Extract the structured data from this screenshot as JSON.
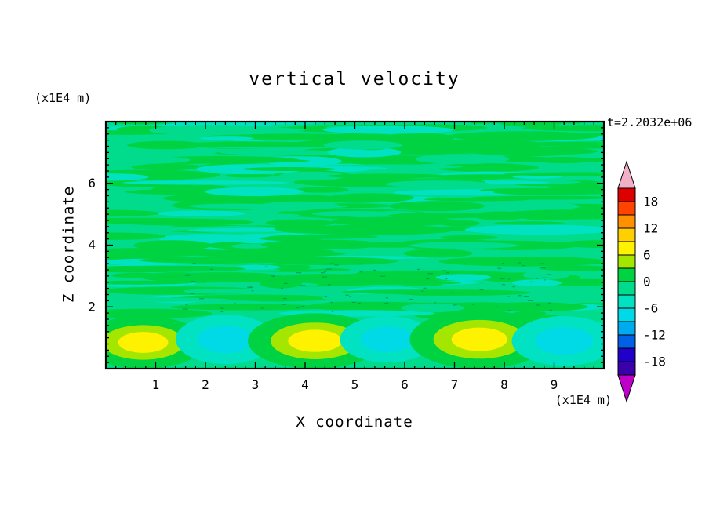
{
  "chart_data": {
    "type": "heatmap",
    "title": "vertical velocity",
    "time_label": "t=2.2032e+06",
    "xlabel": "X coordinate",
    "ylabel": "Z coordinate",
    "x_units": "(x1E4 m)",
    "y_units": "(x1E4 m)",
    "xlim": [
      0,
      10
    ],
    "ylim": [
      0,
      8
    ],
    "x_ticks": [
      1,
      2,
      3,
      4,
      5,
      6,
      7,
      8,
      9
    ],
    "y_ticks": [
      2,
      4,
      6
    ],
    "minor_tick_step": 0.2,
    "grid": false,
    "legend_position": "right-colorbar",
    "field": {
      "background_color": "#00DC8C",
      "streak_color": "#00D341",
      "streak_color2": "#00E2C2",
      "contour_dash_color": "#00A050",
      "streak_zone": [
        1.8,
        7.95
      ],
      "streak_count": 300,
      "dash_count": 90,
      "seed": 77
    },
    "palettes": {
      "pos": [
        {
          "color": "#00D341",
          "scale": 1.0
        },
        {
          "color": "#A5E600",
          "scale": 0.66
        },
        {
          "color": "#FFF200",
          "scale": 0.4
        }
      ],
      "neg": [
        {
          "color": "#00E2C2",
          "scale": 1.0
        },
        {
          "color": "#00DAE6",
          "scale": 0.56
        }
      ]
    },
    "cells": [
      {
        "x": 0.75,
        "z": 0.85,
        "rx": 1.25,
        "rz": 0.85,
        "type": "pos",
        "peak": "positive updraft ~7"
      },
      {
        "x": 2.4,
        "z": 0.95,
        "rx": 1.0,
        "rz": 0.8,
        "type": "neg",
        "peak": "negative downdraft ~-7"
      },
      {
        "x": 4.2,
        "z": 0.9,
        "rx": 1.35,
        "rz": 0.9,
        "type": "pos",
        "peak": "positive updraft ~7"
      },
      {
        "x": 5.65,
        "z": 0.95,
        "rx": 0.95,
        "rz": 0.75,
        "type": "neg",
        "peak": "negative downdraft ~-7"
      },
      {
        "x": 7.5,
        "z": 0.95,
        "rx": 1.4,
        "rz": 0.95,
        "type": "pos",
        "peak": "positive updraft ~8"
      },
      {
        "x": 9.2,
        "z": 0.9,
        "rx": 1.05,
        "rz": 0.8,
        "type": "neg",
        "peak": "negative downdraft ~-7"
      }
    ],
    "colorbar": {
      "value_min": -21,
      "value_max": 21,
      "step": 3,
      "colors_top_to_bottom": [
        "#DD0000",
        "#FF4400",
        "#FF9000",
        "#FFD000",
        "#FFF200",
        "#A5E600",
        "#00D341",
        "#00DC8C",
        "#00E2C2",
        "#00DAE6",
        "#00AAEE",
        "#0060E6",
        "#2200CC",
        "#3A00AA"
      ],
      "labels": [
        "18",
        "12",
        "6",
        "0",
        "-6",
        "-12",
        "-18"
      ],
      "arrow_top_color": "#F2AFC8",
      "arrow_bottom_color": "#BE00C8"
    }
  }
}
